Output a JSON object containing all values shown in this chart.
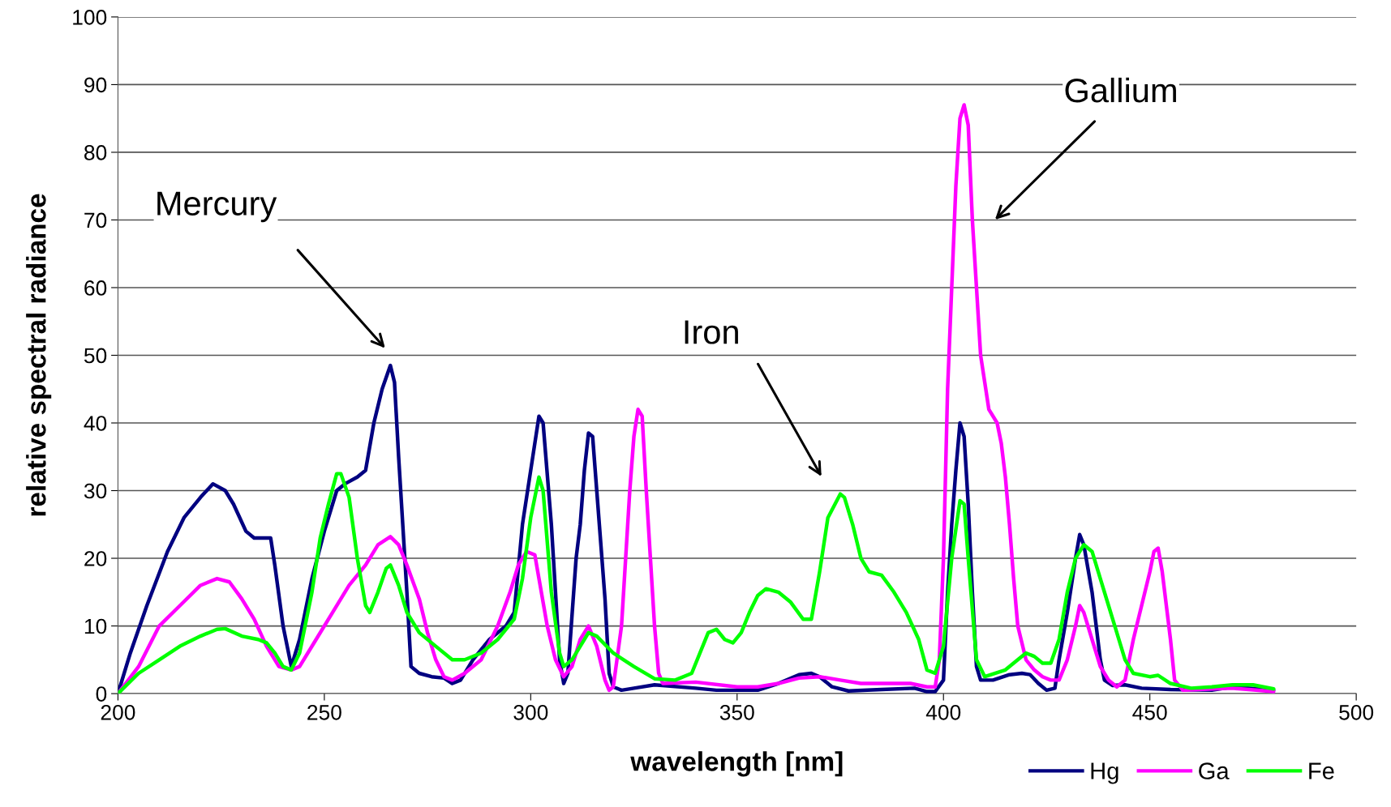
{
  "chart_data": {
    "type": "line",
    "xlabel": "wavelength [nm]",
    "ylabel": "relative spectral radiance",
    "xlim": [
      200,
      500
    ],
    "xticks": [
      200,
      250,
      300,
      350,
      400,
      450,
      500
    ],
    "ylim": [
      0,
      100
    ],
    "yticks": [
      0,
      10,
      20,
      30,
      40,
      50,
      60,
      70,
      80,
      90,
      100
    ],
    "grid": "y",
    "legend": "bottom right",
    "marker": "none",
    "line_style": "solid",
    "series": [
      {
        "name": "Hg",
        "color": "#000080",
        "x": [
          200,
          203,
          207,
          212,
          216,
          220,
          223,
          226,
          228,
          231,
          233,
          237,
          238,
          240,
          242,
          244,
          247,
          250,
          253,
          255,
          258,
          260,
          262,
          264,
          266,
          267,
          268,
          270,
          271,
          273,
          276,
          279,
          281,
          283,
          286,
          290,
          294,
          296,
          298,
          300,
          302,
          303,
          305,
          307,
          308,
          309,
          311,
          312,
          313,
          314,
          315,
          316,
          318,
          319,
          320,
          322,
          325,
          330,
          340,
          345,
          355,
          360,
          365,
          368,
          370,
          373,
          377,
          385,
          393,
          396,
          398,
          400,
          401,
          402,
          403,
          404,
          405,
          406,
          407,
          408,
          409,
          412,
          416,
          419,
          421,
          423,
          425,
          427,
          428,
          430,
          432,
          433,
          434,
          436,
          438,
          439,
          441,
          444,
          448,
          455,
          465,
          470,
          480
        ],
        "values": [
          0,
          6,
          13,
          21,
          26,
          29,
          31,
          30,
          28,
          24,
          23,
          23,
          19,
          10,
          4,
          8,
          17,
          24,
          30,
          31,
          32,
          33,
          40,
          45,
          48.5,
          46,
          35,
          15,
          4,
          3,
          2.5,
          2.3,
          1.5,
          2,
          5,
          8,
          10,
          12,
          25,
          33,
          41,
          40,
          25,
          5,
          1.5,
          3,
          20,
          25,
          33,
          38.5,
          38,
          30,
          14,
          3,
          1,
          0.5,
          0.8,
          1.3,
          0.8,
          0.5,
          0.5,
          1.5,
          2.8,
          3,
          2.5,
          1,
          0.4,
          0.6,
          0.8,
          0.3,
          0.3,
          2,
          15,
          25,
          33,
          40,
          38,
          28,
          15,
          4,
          2,
          2,
          2.8,
          3,
          2.8,
          1.5,
          0.5,
          0.8,
          5,
          12,
          20,
          23.5,
          22,
          15,
          5,
          2,
          1.2,
          1.3,
          0.8,
          0.6,
          0.5,
          1,
          0.5
        ]
      },
      {
        "name": "Ga",
        "color": "#ff00ff",
        "x": [
          200,
          205,
          210,
          215,
          220,
          224,
          227,
          230,
          233,
          236,
          239,
          242,
          244,
          248,
          252,
          256,
          260,
          263,
          266,
          268,
          270,
          273,
          275,
          277,
          279,
          281,
          284,
          288,
          292,
          295,
          297,
          299,
          301,
          302,
          304,
          306,
          308,
          310,
          312,
          314,
          316,
          318,
          319,
          320,
          322,
          323,
          324,
          325,
          326,
          327,
          328,
          329,
          330,
          331,
          332,
          340,
          350,
          355,
          360,
          365,
          370,
          375,
          380,
          392,
          396,
          398,
          399,
          400,
          401,
          402,
          403,
          404,
          405,
          406,
          407,
          408,
          409,
          410,
          411,
          413,
          414,
          415,
          416,
          417,
          418,
          420,
          422,
          424,
          426,
          428,
          430,
          432,
          433,
          434,
          436,
          438,
          440,
          442,
          444,
          446,
          448,
          450,
          451,
          452,
          453,
          455,
          456,
          458,
          470,
          480
        ],
        "values": [
          0,
          4,
          10,
          13,
          16,
          17,
          16.5,
          14,
          11,
          7,
          4,
          3.5,
          4,
          8,
          12,
          16,
          19,
          22,
          23.2,
          22,
          19,
          14,
          9,
          5,
          2.5,
          2,
          3,
          5,
          10,
          15,
          19,
          21,
          20.5,
          17,
          10,
          5,
          2.5,
          4,
          8,
          10,
          7,
          2,
          0.5,
          1,
          10,
          20,
          30,
          38,
          42,
          41,
          30,
          20,
          10,
          3,
          1.5,
          1.7,
          1,
          1,
          1.5,
          2.3,
          2.5,
          2,
          1.5,
          1.5,
          1,
          1,
          5,
          20,
          45,
          60,
          75,
          85,
          87,
          84,
          70,
          60,
          50,
          46,
          42,
          40,
          37,
          32,
          25,
          17,
          10,
          5,
          3.5,
          2.5,
          2,
          2,
          5,
          10,
          13,
          12,
          8,
          4,
          2,
          1,
          2,
          8,
          13,
          18,
          21,
          21.5,
          18,
          8,
          2,
          0.5,
          0.8,
          0.3
        ]
      },
      {
        "name": "Fe",
        "color": "#00ff00",
        "x": [
          200,
          205,
          210,
          215,
          220,
          224,
          226,
          230,
          234,
          236,
          238,
          240,
          242,
          244,
          247,
          249,
          251,
          253,
          254,
          256,
          258,
          260,
          261,
          263,
          265,
          266,
          268,
          270,
          273,
          277,
          281,
          284,
          288,
          292,
          296,
          298,
          300,
          302,
          303,
          305,
          307,
          308,
          310,
          312,
          314,
          316,
          320,
          325,
          330,
          335,
          339,
          343,
          345,
          347,
          349,
          351,
          353,
          355,
          357,
          360,
          363,
          366,
          368,
          370,
          372,
          375,
          376,
          378,
          380,
          382,
          385,
          388,
          391,
          394,
          396,
          398,
          400,
          402,
          404,
          405,
          406,
          408,
          410,
          415,
          418,
          420,
          422,
          424,
          426,
          428,
          430,
          432,
          434,
          436,
          438,
          440,
          442,
          444,
          446,
          450,
          452,
          455,
          460,
          465,
          470,
          475,
          480
        ],
        "values": [
          0,
          3,
          5,
          7,
          8.5,
          9.5,
          9.6,
          8.5,
          8,
          7.5,
          6,
          4,
          3.5,
          6,
          15,
          23,
          28,
          32.5,
          32.5,
          29,
          20,
          13,
          12,
          15,
          18.5,
          19,
          16,
          12,
          9,
          7,
          5,
          5,
          6,
          8,
          11,
          17,
          26,
          32,
          30,
          15,
          6,
          4,
          5,
          7,
          9,
          8.5,
          6,
          4,
          2.2,
          2,
          3,
          9,
          9.5,
          8,
          7.5,
          9,
          12,
          14.5,
          15.5,
          15,
          13.5,
          11,
          11,
          18,
          26,
          29.5,
          29,
          25,
          20,
          18,
          17.5,
          15,
          12,
          8,
          3.5,
          3,
          7,
          20,
          28.5,
          28,
          20,
          5,
          2.5,
          3.5,
          5,
          6,
          5.5,
          4.5,
          4.5,
          8,
          15,
          20,
          22,
          21,
          17,
          13,
          9,
          5,
          3,
          2.5,
          2.7,
          1.5,
          0.8,
          1,
          1.3,
          1.3,
          0.7
        ]
      }
    ],
    "annotations": [
      "Mercury",
      "Iron",
      "Gallium"
    ]
  }
}
